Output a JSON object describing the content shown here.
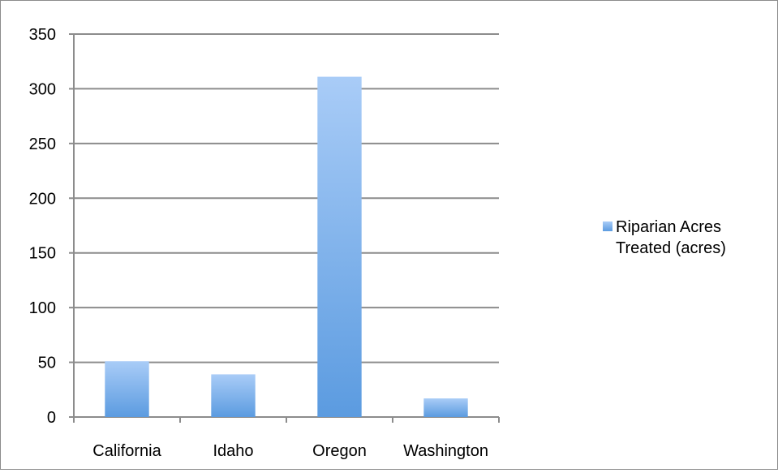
{
  "chart_data": {
    "type": "bar",
    "categories": [
      "California",
      "Idaho",
      "Oregon",
      "Washington"
    ],
    "series": [
      {
        "name": "Riparian Acres Treated (acres)",
        "values": [
          51,
          39,
          311,
          17
        ]
      }
    ],
    "title": "",
    "xlabel": "",
    "ylabel": "",
    "ylim": [
      0,
      350
    ],
    "yticks": [
      0,
      50,
      100,
      150,
      200,
      250,
      300,
      350
    ],
    "grid": true,
    "legend_position": "right",
    "colors": {
      "bar_top": "#a9ccf7",
      "bar_bottom": "#5b9be0",
      "grid": "#8c8c8c",
      "axis": "#8c8c8c"
    }
  }
}
